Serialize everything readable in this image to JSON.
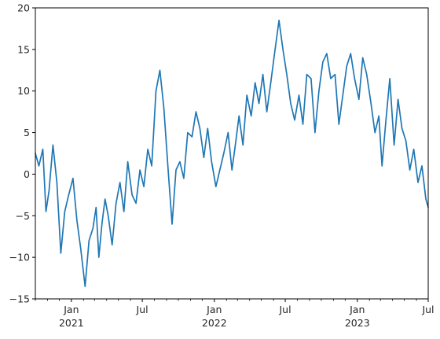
{
  "chart_data": {
    "type": "line",
    "title": "",
    "xlabel": "",
    "ylabel": "",
    "xlim": [
      "2020-10-01",
      "2023-07-01"
    ],
    "ylim": [
      -15,
      20
    ],
    "grid": false,
    "yticks": [
      -15,
      -10,
      -5,
      0,
      5,
      10,
      15,
      20
    ],
    "xticks_major": [
      {
        "date": "2021-01-01",
        "label": "Jan",
        "year_label": "2021"
      },
      {
        "date": "2021-07-01",
        "label": "Jul",
        "year_label": ""
      },
      {
        "date": "2022-01-01",
        "label": "Jan",
        "year_label": "2022"
      },
      {
        "date": "2022-07-01",
        "label": "Jul",
        "year_label": ""
      },
      {
        "date": "2023-01-01",
        "label": "Jan",
        "year_label": "2023"
      },
      {
        "date": "2023-07-01",
        "label": "Jul",
        "year_label": ""
      }
    ],
    "series": [
      {
        "color": "#1f77b4",
        "x": [
          "2020-10-01",
          "2020-10-10",
          "2020-10-20",
          "2020-10-28",
          "2020-11-05",
          "2020-11-15",
          "2020-11-25",
          "2020-12-05",
          "2020-12-15",
          "2020-12-25",
          "2021-01-05",
          "2021-01-15",
          "2021-01-25",
          "2021-02-05",
          "2021-02-15",
          "2021-02-25",
          "2021-03-05",
          "2021-03-12",
          "2021-03-20",
          "2021-03-28",
          "2021-04-05",
          "2021-04-15",
          "2021-04-25",
          "2021-05-05",
          "2021-05-15",
          "2021-05-25",
          "2021-06-05",
          "2021-06-15",
          "2021-06-25",
          "2021-07-05",
          "2021-07-15",
          "2021-07-25",
          "2021-08-05",
          "2021-08-15",
          "2021-08-25",
          "2021-09-05",
          "2021-09-15",
          "2021-09-25",
          "2021-10-05",
          "2021-10-15",
          "2021-10-25",
          "2021-11-05",
          "2021-11-15",
          "2021-11-25",
          "2021-12-05",
          "2021-12-15",
          "2021-12-25",
          "2022-01-05",
          "2022-01-15",
          "2022-01-25",
          "2022-02-05",
          "2022-02-15",
          "2022-02-25",
          "2022-03-05",
          "2022-03-15",
          "2022-03-25",
          "2022-04-05",
          "2022-04-15",
          "2022-04-25",
          "2022-05-05",
          "2022-05-15",
          "2022-05-25",
          "2022-06-05",
          "2022-06-15",
          "2022-06-25",
          "2022-07-05",
          "2022-07-15",
          "2022-07-25",
          "2022-08-05",
          "2022-08-15",
          "2022-08-25",
          "2022-09-05",
          "2022-09-15",
          "2022-09-25",
          "2022-10-05",
          "2022-10-15",
          "2022-10-25",
          "2022-11-05",
          "2022-11-15",
          "2022-11-25",
          "2022-12-05",
          "2022-12-15",
          "2022-12-25",
          "2023-01-05",
          "2023-01-15",
          "2023-01-25",
          "2023-02-05",
          "2023-02-15",
          "2023-02-25",
          "2023-03-05",
          "2023-03-15",
          "2023-03-25",
          "2023-04-05",
          "2023-04-15",
          "2023-04-25",
          "2023-05-05",
          "2023-05-15",
          "2023-05-25",
          "2023-06-05",
          "2023-06-15",
          "2023-06-25",
          "2023-07-01"
        ],
        "y": [
          2.5,
          1.0,
          3.0,
          -4.5,
          -2.0,
          3.5,
          -1.0,
          -9.5,
          -4.5,
          -2.5,
          -0.5,
          -5.5,
          -9.0,
          -13.5,
          -8.0,
          -6.5,
          -4.0,
          -10.0,
          -6.0,
          -3.0,
          -5.0,
          -8.5,
          -3.5,
          -1.0,
          -4.5,
          1.5,
          -2.5,
          -3.5,
          0.5,
          -1.5,
          3.0,
          1.0,
          10.0,
          12.5,
          8.0,
          0.5,
          -6.0,
          0.5,
          1.5,
          -0.5,
          5.0,
          4.5,
          7.5,
          5.5,
          2.0,
          5.5,
          1.5,
          -1.5,
          0.5,
          2.5,
          5.0,
          0.5,
          4.0,
          7.0,
          3.5,
          9.5,
          7.0,
          11.0,
          8.5,
          12.0,
          7.5,
          11.0,
          15.0,
          18.5,
          15.0,
          12.0,
          8.5,
          6.5,
          9.5,
          6.0,
          12.0,
          11.5,
          5.0,
          10.0,
          13.5,
          14.5,
          11.5,
          12.0,
          6.0,
          9.5,
          13.0,
          14.5,
          11.5,
          9.0,
          14.0,
          12.0,
          8.5,
          5.0,
          7.0,
          1.0,
          6.5,
          11.5,
          3.5,
          9.0,
          5.5,
          4.0,
          0.5,
          3.0,
          -1.0,
          1.0,
          -3.0,
          -4.0
        ]
      }
    ]
  }
}
